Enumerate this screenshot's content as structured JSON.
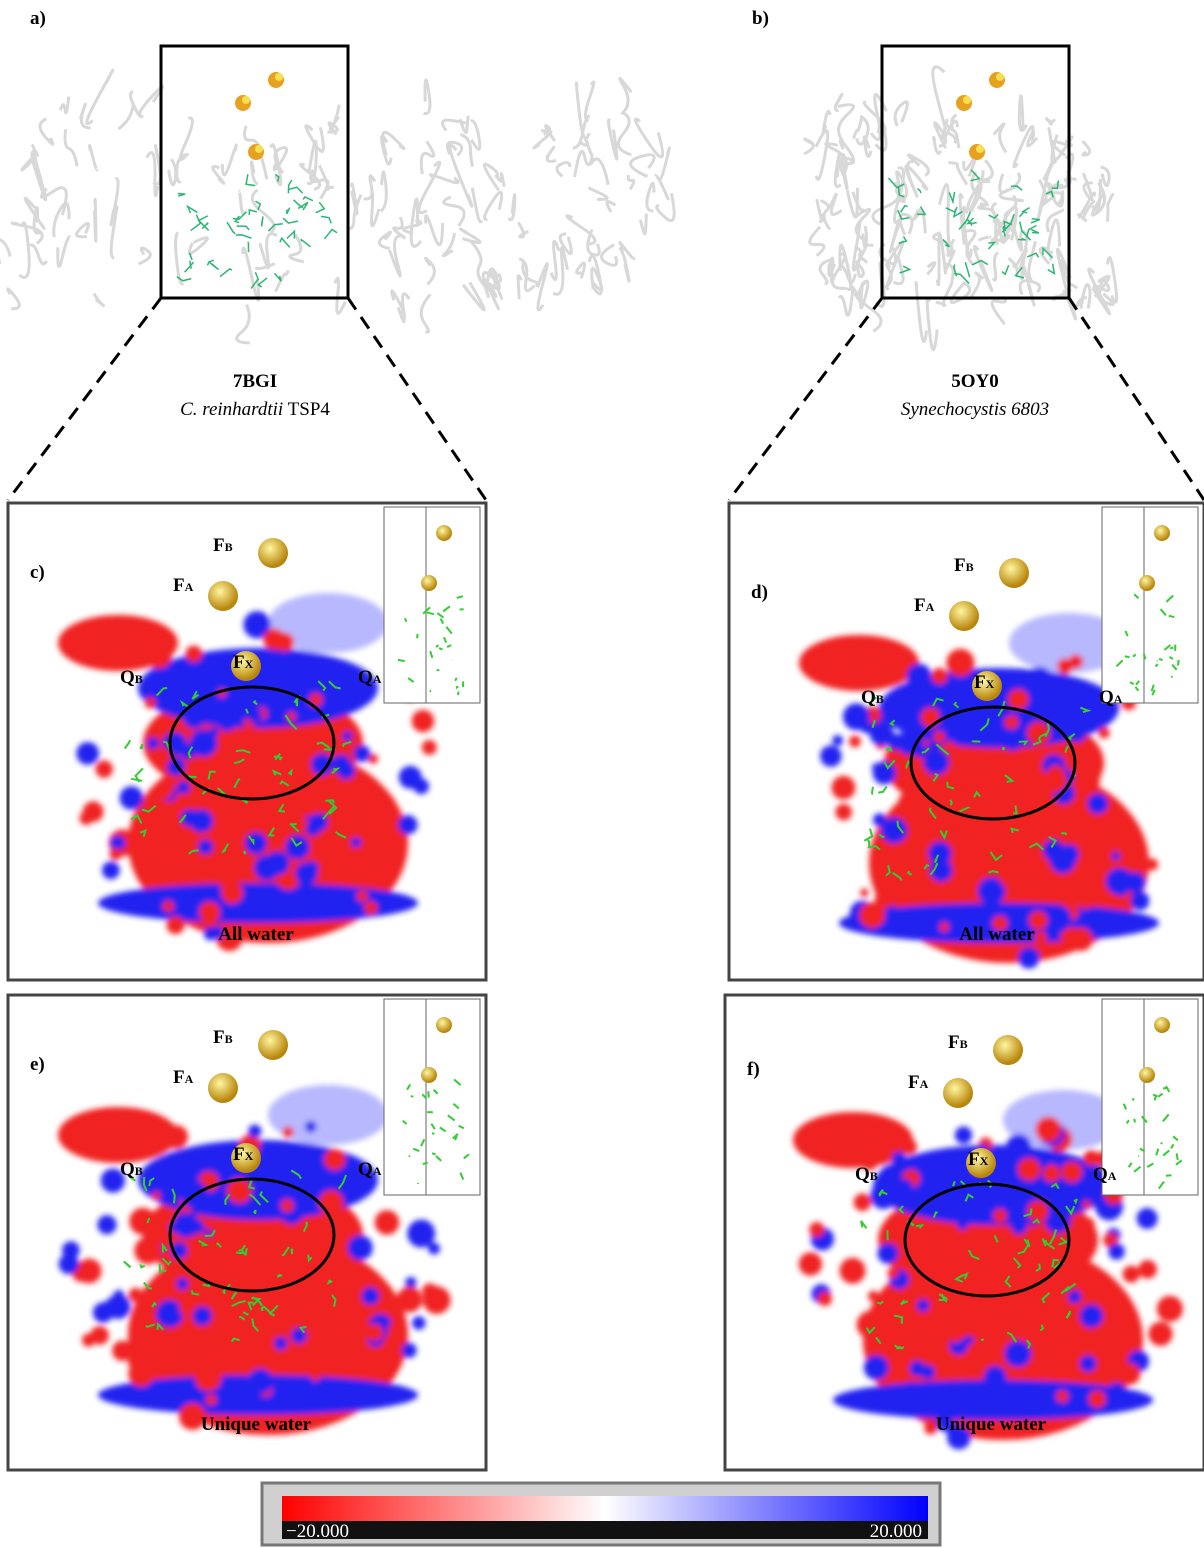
{
  "panels": [
    {
      "label": "a)",
      "pdb": "7BGI",
      "species_italic": "C. reinhardtii",
      "species_rest": "TSP4"
    },
    {
      "label": "b)",
      "pdb": "5OY0",
      "species_italic": "Synechocystis 6803"
    }
  ],
  "maps": [
    {
      "label": "c)",
      "caption": "All water",
      "sites": [
        {
          "main": "F",
          "sub": "B"
        },
        {
          "main": "F",
          "sub": "A"
        },
        {
          "main": "F",
          "sub": "X"
        },
        {
          "main": "Q",
          "sub": "B"
        },
        {
          "main": "Q",
          "sub": "A"
        }
      ]
    },
    {
      "label": "d)",
      "caption": "All water",
      "sites": [
        {
          "main": "F",
          "sub": "B"
        },
        {
          "main": "F",
          "sub": "A"
        },
        {
          "main": "F",
          "sub": "X"
        },
        {
          "main": "Q",
          "sub": "B"
        },
        {
          "main": "Q",
          "sub": "A"
        }
      ]
    },
    {
      "label": "e)",
      "caption": "Unique water",
      "sites": [
        {
          "main": "F",
          "sub": "B"
        },
        {
          "main": "F",
          "sub": "A"
        },
        {
          "main": "F",
          "sub": "X"
        },
        {
          "main": "Q",
          "sub": "B"
        },
        {
          "main": "Q",
          "sub": "A"
        }
      ]
    },
    {
      "label": "f)",
      "caption": "Unique water",
      "sites": [
        {
          "main": "F",
          "sub": "B"
        },
        {
          "main": "F",
          "sub": "A"
        },
        {
          "main": "F",
          "sub": "X"
        },
        {
          "main": "Q",
          "sub": "B"
        },
        {
          "main": "Q",
          "sub": "A"
        }
      ]
    }
  ],
  "colorbar": {
    "min_label": "−20.000",
    "max_label": "20.000"
  }
}
